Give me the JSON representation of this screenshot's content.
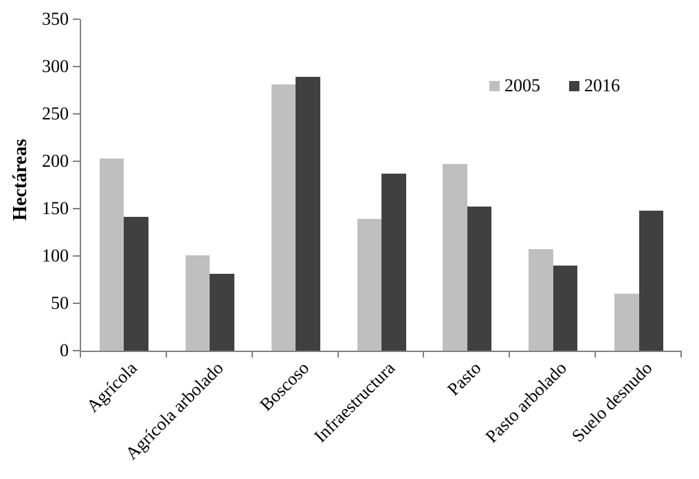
{
  "chart_data": {
    "type": "bar",
    "title": "",
    "ylabel": "Hectáreas",
    "xlabel": "",
    "categories": [
      "Agrícola",
      "Agrícola arbolado",
      "Boscoso",
      "Infraestructura",
      "Pasto",
      "Pasto arbolado",
      "Suelo desnudo"
    ],
    "series": [
      {
        "name": "2005",
        "color": "#bfbfbf",
        "values": [
          203,
          101,
          281,
          139,
          197,
          107,
          60
        ]
      },
      {
        "name": "2016",
        "color": "#404040",
        "values": [
          141,
          81,
          289,
          187,
          152,
          90,
          148
        ]
      }
    ],
    "ylim": [
      0,
      350
    ],
    "yticks": [
      0,
      50,
      100,
      150,
      200,
      250,
      300,
      350
    ],
    "grid": false,
    "legend_position": "top-right-inside",
    "axis_color": "#808080",
    "text_color": "#000000",
    "background_color": "#ffffff"
  }
}
